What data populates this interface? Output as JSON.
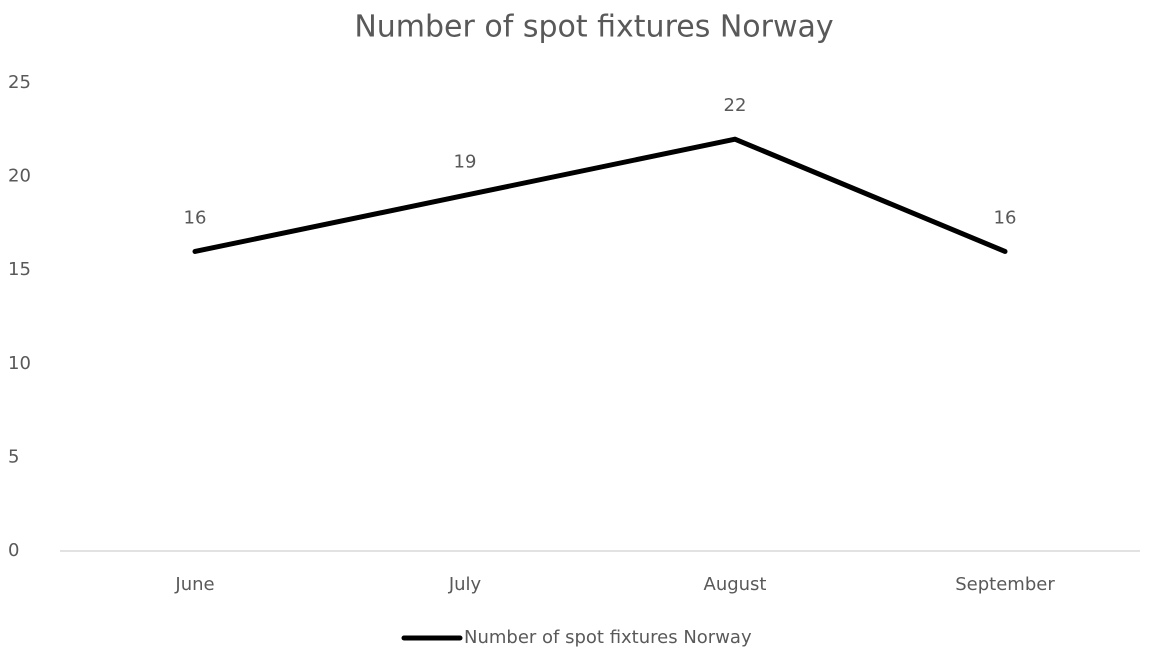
{
  "chart_data": {
    "type": "line",
    "title": "Number of spot fixtures Norway",
    "categories": [
      "June",
      "July",
      "August",
      "September"
    ],
    "series": [
      {
        "name": "Number of spot fixtures Norway",
        "color": "#000000",
        "values": [
          16,
          19,
          22,
          16
        ]
      }
    ],
    "ylim": [
      0,
      25
    ],
    "yticks": [
      0,
      5,
      10,
      15,
      20,
      25
    ],
    "grid": false,
    "legend": "bottom"
  }
}
